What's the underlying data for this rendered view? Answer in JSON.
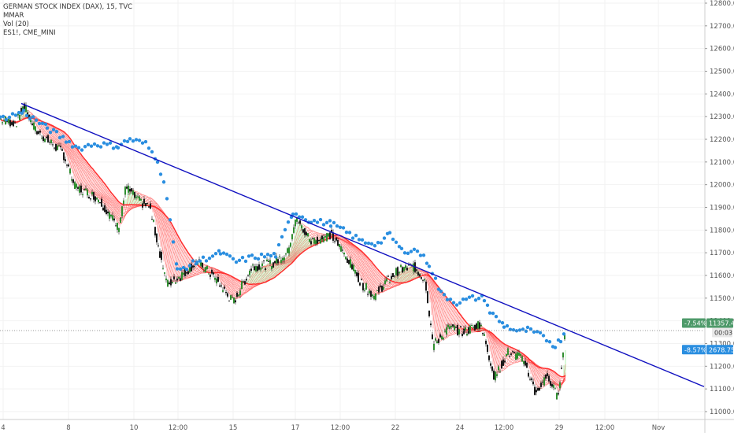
{
  "legend": {
    "symbol": "GERMAN STOCK INDEX (DAX), 15, TVC",
    "indicator_1": "MMAR",
    "indicator_2": "Vol (20)",
    "indicator_3": "ES1!, CME_MINI"
  },
  "colors": {
    "price_line": "#1a1a1a",
    "ribbon_bear": "#ff2e2e",
    "ribbon_bull": "#1fe01f",
    "trendline": "#1010c0",
    "overlay_dots": "#2a8ee0",
    "badge_green": "#4e9a6a",
    "badge_blue": "#2a8ee0",
    "grid": "#f2f2f2"
  },
  "price_axis": {
    "ticks": [
      "12800.0",
      "12700.0",
      "12600.0",
      "12500.0",
      "12400.0",
      "12300.0",
      "12200.0",
      "12100.0",
      "12000.0",
      "11900.0",
      "11800.0",
      "11700.0",
      "11600.0",
      "11500.0",
      "11400.0",
      "11300.0",
      "11200.0",
      "11100.0",
      "11000.0"
    ]
  },
  "time_axis": {
    "labels": [
      "4",
      "8",
      "10",
      "12:00",
      "15",
      "17",
      "12:00",
      "22",
      "24",
      "12:00",
      "29",
      "12:00",
      "Nov"
    ]
  },
  "badges": {
    "dax_change": "-7.54%",
    "dax_price": "11357.4",
    "countdown": "00:03",
    "es_change": "-8.57%",
    "es_price": "2678.75"
  },
  "chart_data": {
    "type": "line",
    "title": "GERMAN STOCK INDEX (DAX), 15, TVC",
    "xlabel": "",
    "ylabel": "",
    "ylim": [
      10950,
      12820
    ],
    "grid": true,
    "x": [
      "4",
      "8",
      "10",
      "12:00",
      "15",
      "17",
      "12:00",
      "22",
      "24",
      "12:00",
      "29"
    ],
    "series": [
      {
        "name": "GERMAN STOCK INDEX (DAX), 15, TVC",
        "values": [
          12270,
          12240,
          11820,
          11560,
          11470,
          11860,
          11720,
          11530,
          11270,
          11060,
          11357
        ]
      },
      {
        "name": "ES1!, CME_MINI",
        "values": [
          12290,
          12180,
          12170,
          11650,
          11640,
          11880,
          11830,
          11680,
          11510,
          11360,
          11360
        ]
      }
    ]
  }
}
